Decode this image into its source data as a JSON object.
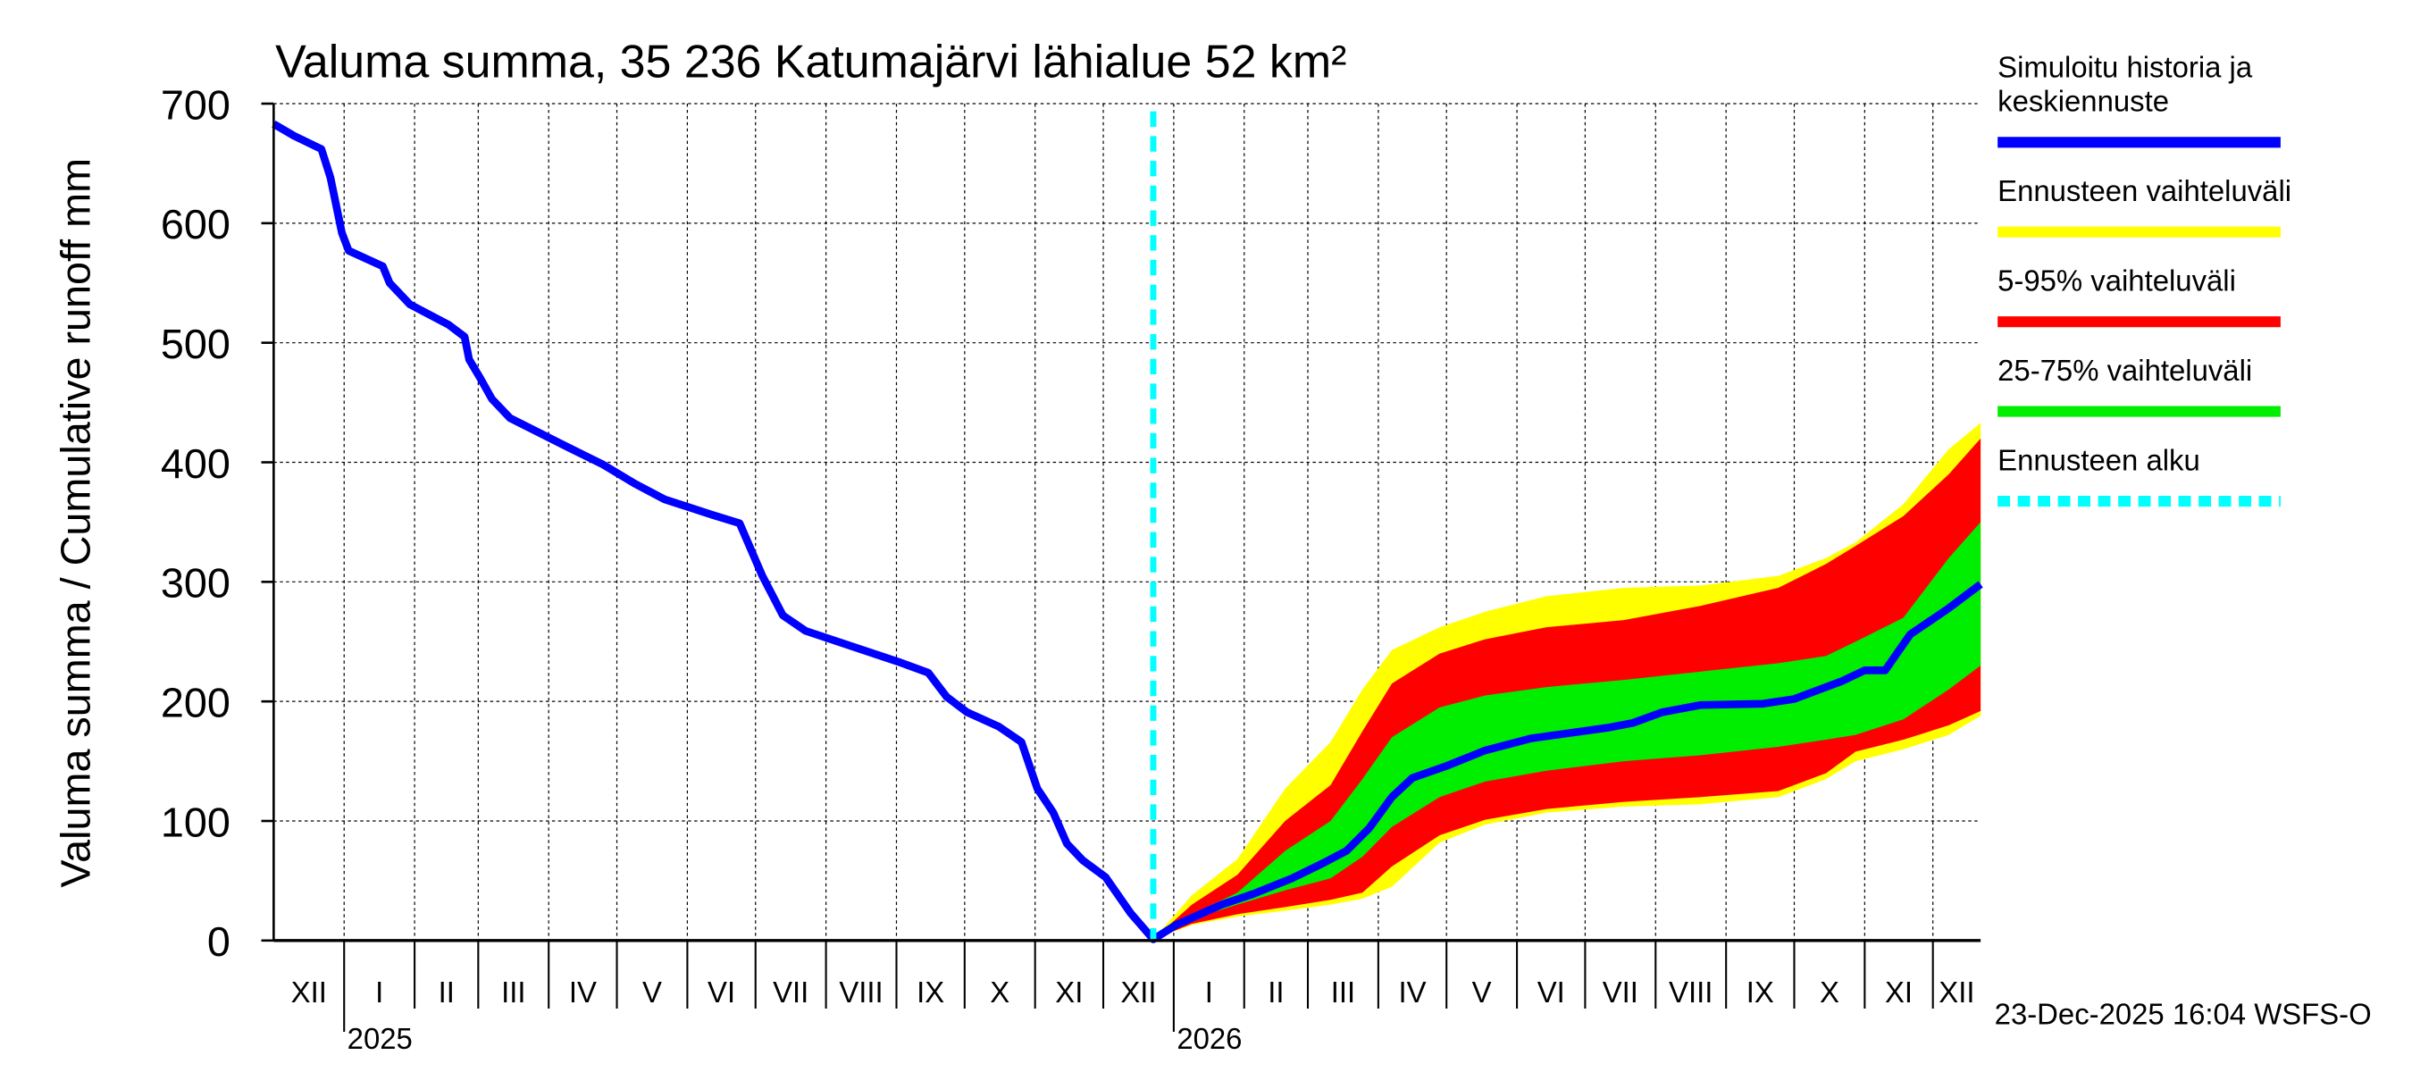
{
  "chart_data": {
    "type": "area",
    "title": "Valuma summa, 35 236 Katumajärvi lähialue 52 km²",
    "ylabel": "Valuma summa / Cumulative runoff    mm",
    "ylim": [
      0,
      700
    ],
    "yticks": [
      0,
      100,
      200,
      300,
      400,
      500,
      600,
      700
    ],
    "xlim": [
      "2024-12-01",
      "2026-12-22"
    ],
    "grid": true,
    "legend_position": "right",
    "month_labels": [
      "XII",
      "I",
      "II",
      "III",
      "IV",
      "V",
      "VI",
      "VII",
      "VIII",
      "IX",
      "X",
      "XI",
      "XII",
      "I",
      "II",
      "III",
      "IV",
      "V",
      "VI",
      "VII",
      "VIII",
      "IX",
      "X",
      "XI",
      "XII"
    ],
    "year_labels": [
      "2025",
      "2026"
    ],
    "forecast_start": "2025-12-23",
    "timestamp": "23-Dec-2025 16:04 WSFS-O",
    "colors": {
      "history": "#0000ff",
      "range": "#ffff00",
      "p5_95": "#ff0000",
      "p25_75": "#00ee00",
      "forecast_start": "#00ffff"
    },
    "legend": [
      {
        "label": "Simuloitu historia ja keskiennuste",
        "lines": [
          "Simuloitu historia ja",
          "keskiennuste"
        ],
        "color": "#0000ff"
      },
      {
        "label": "Ennusteen vaihteluväli",
        "lines": [
          "Ennusteen vaihteluväli"
        ],
        "color": "#ffff00"
      },
      {
        "label": "5-95% vaihteluväli",
        "lines": [
          "5-95% vaihteluväli"
        ],
        "color": "#ff0000"
      },
      {
        "label": "25-75% vaihteluväli",
        "lines": [
          "25-75% vaihteluväli"
        ],
        "color": "#00ee00"
      },
      {
        "label": "Ennusteen alku",
        "lines": [
          "Ennusteen alku"
        ],
        "color": "#00ffff"
      }
    ],
    "history_and_median": {
      "dates": [
        "2024-12-01",
        "2024-12-10",
        "2024-12-22",
        "2024-12-26",
        "2024-12-31",
        "2025-01-03",
        "2025-01-18",
        "2025-01-21",
        "2025-01-30",
        "2025-02-16",
        "2025-02-23",
        "2025-02-25",
        "2025-03-02",
        "2025-03-07",
        "2025-03-15",
        "2025-04-08",
        "2025-04-25",
        "2025-05-09",
        "2025-05-22",
        "2025-06-12",
        "2025-06-24",
        "2025-06-29",
        "2025-07-04",
        "2025-07-13",
        "2025-07-23",
        "2025-09-02",
        "2025-09-15",
        "2025-09-23",
        "2025-10-02",
        "2025-10-16",
        "2025-10-26",
        "2025-11-02",
        "2025-11-09",
        "2025-11-15",
        "2025-11-22",
        "2025-12-02",
        "2025-12-13",
        "2025-12-23",
        "2026-01-02",
        "2026-01-22",
        "2026-02-05",
        "2026-02-22",
        "2026-03-08",
        "2026-03-18",
        "2026-03-28",
        "2026-04-07",
        "2026-04-16",
        "2026-05-01",
        "2026-05-18",
        "2026-06-07",
        "2026-07-11",
        "2026-07-22",
        "2026-08-04",
        "2026-08-21",
        "2026-09-17",
        "2026-10-01",
        "2026-10-22",
        "2026-11-01",
        "2026-11-10",
        "2026-11-21",
        "2026-12-08",
        "2026-12-22"
      ],
      "values": [
        683,
        673,
        662,
        638,
        592,
        577,
        564,
        550,
        532,
        515,
        505,
        486,
        470,
        453,
        437,
        414,
        398,
        382,
        369,
        356,
        349,
        327,
        305,
        272,
        259,
        233,
        224,
        204,
        191,
        179,
        166,
        127,
        107,
        81,
        67,
        53,
        23,
        1,
        13,
        30,
        39,
        52,
        65,
        75,
        94,
        120,
        136,
        146,
        159,
        169,
        178,
        182,
        191,
        197,
        198,
        202,
        217,
        226,
        226,
        256,
        278,
        298
      ]
    },
    "bands": {
      "dates": [
        "2025-12-23",
        "2026-01-09",
        "2026-01-29",
        "2026-02-19",
        "2026-03-11",
        "2026-03-25",
        "2026-04-07",
        "2026-04-28",
        "2026-05-18",
        "2026-06-14",
        "2026-07-18",
        "2026-08-21",
        "2026-09-24",
        "2026-10-15",
        "2026-10-28",
        "2026-11-18",
        "2026-12-08",
        "2026-12-22"
      ],
      "min": [
        1,
        13,
        20,
        25,
        30,
        35,
        45,
        82,
        97,
        107,
        112,
        114,
        120,
        135,
        150,
        160,
        172,
        188
      ],
      "p5": [
        1,
        14,
        22,
        28,
        34,
        40,
        62,
        88,
        101,
        110,
        116,
        120,
        125,
        140,
        158,
        168,
        180,
        192
      ],
      "p25": [
        1,
        18,
        30,
        42,
        52,
        70,
        95,
        120,
        133,
        142,
        150,
        155,
        162,
        168,
        172,
        185,
        210,
        230
      ],
      "p75": [
        1,
        22,
        40,
        75,
        100,
        135,
        170,
        195,
        205,
        212,
        218,
        225,
        232,
        238,
        250,
        270,
        320,
        350
      ],
      "p95": [
        1,
        30,
        55,
        100,
        130,
        175,
        215,
        240,
        252,
        262,
        268,
        280,
        295,
        315,
        330,
        355,
        390,
        420
      ],
      "max": [
        1,
        38,
        68,
        127,
        166,
        210,
        243,
        262,
        275,
        288,
        295,
        297,
        305,
        320,
        333,
        365,
        411,
        433
      ]
    }
  }
}
